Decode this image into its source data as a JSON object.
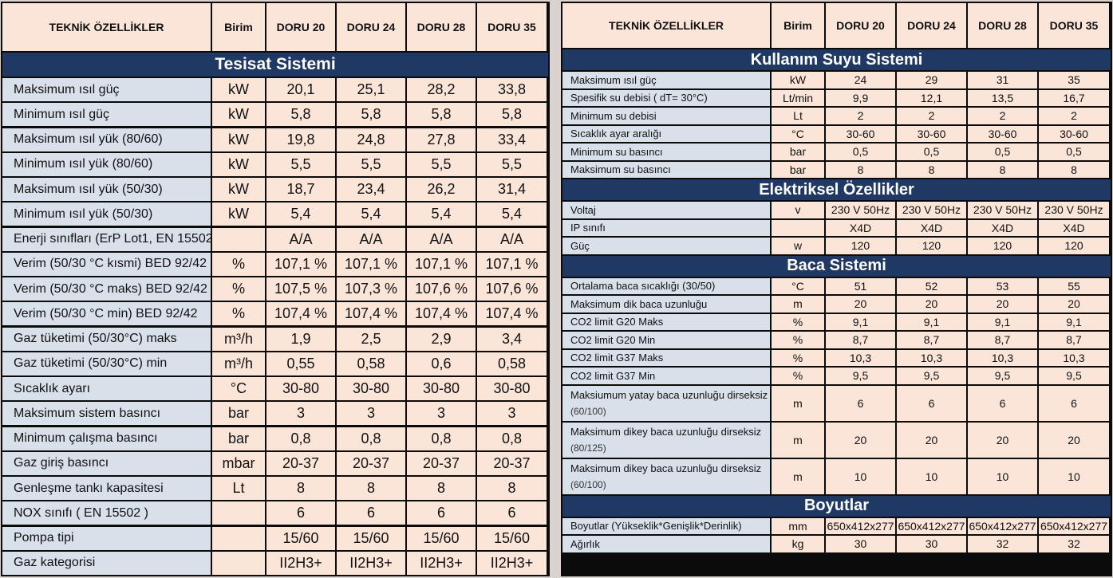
{
  "left": {
    "headers": [
      "TEKNİK ÖZELLİKLER",
      "Birim",
      "DORU 20",
      "DORU 24",
      "DORU 28",
      "DORU 35"
    ],
    "section": "Tesisat Sistemi",
    "rows": [
      {
        "label": "Maksimum ısıl güç",
        "unit": "kW",
        "v": [
          "20,1",
          "25,1",
          "28,2",
          "33,8"
        ]
      },
      {
        "label": "Minimum ısıl güç",
        "unit": "kW",
        "v": [
          "5,8",
          "5,8",
          "5,8",
          "5,8"
        ]
      },
      {
        "label": "Maksimum ısıl yük (80/60)",
        "unit": "kW",
        "v": [
          "19,8",
          "24,8",
          "27,8",
          "33,4"
        ]
      },
      {
        "label": "Minimum ısıl yük (80/60)",
        "unit": "kW",
        "v": [
          "5,5",
          "5,5",
          "5,5",
          "5,5"
        ]
      },
      {
        "label": "Maksimum ısıl yük (50/30)",
        "unit": "kW",
        "v": [
          "18,7",
          "23,4",
          "26,2",
          "31,4"
        ]
      },
      {
        "label": "Minimum ısıl yük (50/30)",
        "unit": "kW",
        "v": [
          "5,4",
          "5,4",
          "5,4",
          "5,4"
        ]
      },
      {
        "label": "Enerji sınıfları (ErP Lot1, EN 15502)",
        "unit": "",
        "v": [
          "A/A",
          "A/A",
          "A/A",
          "A/A"
        ]
      },
      {
        "label": "Verim (50/30 °C kısmi) BED 92/42",
        "unit": "%",
        "v": [
          "107,1 %",
          "107,1 %",
          "107,1 %",
          "107,1 %"
        ]
      },
      {
        "label": "Verim (50/30 °C maks) BED 92/42",
        "unit": "%",
        "v": [
          "107,5 %",
          "107,3 %",
          "107,6 %",
          "107,6 %"
        ]
      },
      {
        "label": "Verim (50/30 °C min) BED 92/42",
        "unit": "%",
        "v": [
          "107,4 %",
          "107,4 %",
          "107,4 %",
          "107,4 %"
        ]
      },
      {
        "label": "Gaz tüketimi (50/30°C) maks",
        "unit": "m³/h",
        "v": [
          "1,9",
          "2,5",
          "2,9",
          "3,4"
        ]
      },
      {
        "label": "Gaz tüketimi (50/30°C) min",
        "unit": "m³/h",
        "v": [
          "0,55",
          "0,58",
          "0,6",
          "0,58"
        ]
      },
      {
        "label": "Sıcaklık ayarı",
        "unit": "°C",
        "v": [
          "30-80",
          "30-80",
          "30-80",
          "30-80"
        ]
      },
      {
        "label": "Maksimum sistem basıncı",
        "unit": "bar",
        "v": [
          "3",
          "3",
          "3",
          "3"
        ]
      },
      {
        "label": "Minimum çalışma basıncı",
        "unit": "bar",
        "v": [
          "0,8",
          "0,8",
          "0,8",
          "0,8"
        ]
      },
      {
        "label": "Gaz giriş basıncı",
        "unit": "mbar",
        "v": [
          "20-37",
          "20-37",
          "20-37",
          "20-37"
        ]
      },
      {
        "label": "Genleşme tankı kapasitesi",
        "unit": "Lt",
        "v": [
          "8",
          "8",
          "8",
          "8"
        ]
      },
      {
        "label": "NOX sınıfı ( EN 15502 )",
        "unit": "",
        "v": [
          "6",
          "6",
          "6",
          "6"
        ]
      },
      {
        "label": "Pompa tipi",
        "unit": "",
        "v": [
          "15/60",
          "15/60",
          "15/60",
          "15/60"
        ]
      },
      {
        "label": "Gaz kategorisi",
        "unit": "",
        "v": [
          "II2H3+",
          "II2H3+",
          "II2H3+",
          "II2H3+"
        ]
      }
    ]
  },
  "right": {
    "headers": [
      "TEKNİK ÖZELLİKLER",
      "Birim",
      "DORU 20",
      "DORU 24",
      "DORU 28",
      "DORU 35"
    ],
    "sections": [
      {
        "title": "Kullanım Suyu Sistemi",
        "rows": [
          {
            "label": "Maksimum ısıl güç",
            "unit": "kW",
            "v": [
              "24",
              "29",
              "31",
              "35"
            ]
          },
          {
            "label": "Spesifik su debisi ( dT= 30°C)",
            "unit": "Lt/min",
            "v": [
              "9,9",
              "12,1",
              "13,5",
              "16,7"
            ]
          },
          {
            "label": "Minimum su debisi",
            "unit": "Lt",
            "v": [
              "2",
              "2",
              "2",
              "2"
            ]
          },
          {
            "label": "Sıcaklık ayar aralığı",
            "unit": "°C",
            "v": [
              "30-60",
              "30-60",
              "30-60",
              "30-60"
            ]
          },
          {
            "label": "Minimum su basıncı",
            "unit": "bar",
            "v": [
              "0,5",
              "0,5",
              "0,5",
              "0,5"
            ]
          },
          {
            "label": "Maksimum su basıncı",
            "unit": "bar",
            "v": [
              "8",
              "8",
              "8",
              "8"
            ]
          }
        ]
      },
      {
        "title": "Elektriksel Özellikler",
        "rows": [
          {
            "label": "Voltaj",
            "unit": "v",
            "v": [
              "230 V 50Hz",
              "230 V 50Hz",
              "230 V 50Hz",
              "230 V 50Hz"
            ]
          },
          {
            "label": "IP sınıfı",
            "unit": "",
            "v": [
              "X4D",
              "X4D",
              "X4D",
              "X4D"
            ]
          },
          {
            "label": "Güç",
            "unit": "w",
            "v": [
              "120",
              "120",
              "120",
              "120"
            ]
          }
        ]
      },
      {
        "title": "Baca Sistemi",
        "rows": [
          {
            "label": "Ortalama baca sıcaklığı (30/50)",
            "unit": "°C",
            "v": [
              "51",
              "52",
              "53",
              "55"
            ]
          },
          {
            "label": "Maksimum dik baca uzunluğu",
            "unit": "m",
            "v": [
              "20",
              "20",
              "20",
              "20"
            ]
          },
          {
            "label": "CO2 limit G20 Maks",
            "unit": "%",
            "v": [
              "9,1",
              "9,1",
              "9,1",
              "9,1"
            ]
          },
          {
            "label": "CO2 limit G20 Min",
            "unit": "%",
            "v": [
              "8,7",
              "8,7",
              "8,7",
              "8,7"
            ]
          },
          {
            "label": "CO2 limit G37 Maks",
            "unit": "%",
            "v": [
              "10,3",
              "10,3",
              "10,3",
              "10,3"
            ]
          },
          {
            "label": "CO2 limit G37 Min",
            "unit": "%",
            "v": [
              "9,5",
              "9,5",
              "9,5",
              "9,5"
            ]
          },
          {
            "label": "Maksiumum yatay baca uzunluğu dirseksiz",
            "sub": "(60/100)",
            "unit": "m",
            "v": [
              "6",
              "6",
              "6",
              "6"
            ]
          },
          {
            "label": "Maksimum dikey baca uzunluğu dirseksiz",
            "sub": "(80/125)",
            "unit": "m",
            "v": [
              "20",
              "20",
              "20",
              "20"
            ]
          },
          {
            "label": "Maksimum dikey baca uzunluğu dirseksiz",
            "sub": "(60/100)",
            "unit": "m",
            "v": [
              "10",
              "10",
              "10",
              "10"
            ]
          }
        ]
      },
      {
        "title": "Boyutlar",
        "rows": [
          {
            "label": "Boyutlar (Yükseklik*Genişlik*Derinlik)",
            "unit": "mm",
            "v": [
              "650x412x277",
              "650x412x277",
              "650x412x277",
              "650x412x277"
            ]
          },
          {
            "label": "Ağırlık",
            "unit": "kg",
            "v": [
              "30",
              "30",
              "32",
              "32"
            ]
          }
        ]
      }
    ]
  }
}
